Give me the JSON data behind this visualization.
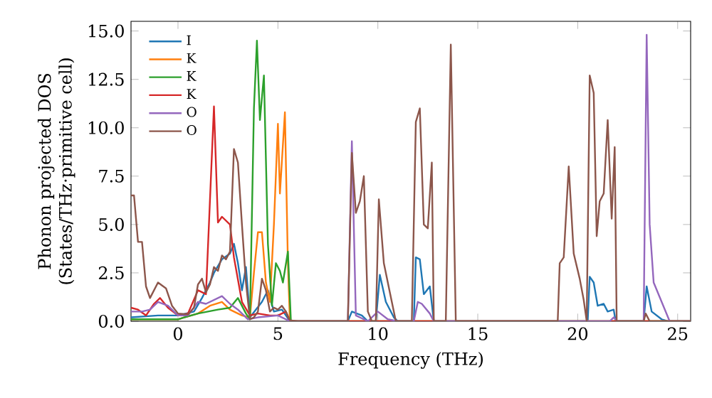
{
  "chart_data": {
    "type": "line",
    "xlabel": "Frequency (THz)",
    "ylabel": "Phonon projected DOS\n(States/THz·primitive cell)",
    "xlim": [
      -2.35,
      25.65
    ],
    "ylim": [
      0,
      15.5
    ],
    "xticks": [
      0,
      5,
      10,
      15,
      20,
      25
    ],
    "yticks": [
      {
        "value": 0,
        "label": "0.0"
      },
      {
        "value": 2.5,
        "label": "2.5"
      },
      {
        "value": 5,
        "label": "5.0"
      },
      {
        "value": 7.5,
        "label": "7.5"
      },
      {
        "value": 10,
        "label": "10.0"
      },
      {
        "value": 12.5,
        "label": "12.5"
      },
      {
        "value": 15,
        "label": "15.0"
      }
    ],
    "legend": "top left",
    "grid": false,
    "marker": "none",
    "line_style": "solid",
    "series": [
      {
        "name": "I",
        "color": "#1f77b4",
        "x": [
          -2.35,
          -1,
          0,
          0.8,
          1.2,
          1.6,
          1.8,
          2.2,
          2.6,
          2.8,
          3.0,
          3.2,
          3.4,
          3.6,
          4.2,
          4.5,
          4.8,
          5.2,
          5.6,
          8.5,
          8.7,
          9.2,
          9.5,
          9.9,
          10.1,
          10.4,
          10.8,
          11,
          11.8,
          11.9,
          12.1,
          12.3,
          12.6,
          12.8,
          20.5,
          20.6,
          20.8,
          21.0,
          21.3,
          21.5,
          21.8,
          21.9,
          23.3,
          23.45,
          23.7,
          24.2,
          24.5,
          25.65
        ],
        "values": [
          0.2,
          0.3,
          0.3,
          0.5,
          1.2,
          2.0,
          2.5,
          3.2,
          3.5,
          4.0,
          3.0,
          1.6,
          2.8,
          0.2,
          1.0,
          1.6,
          0.5,
          0.6,
          0,
          0,
          0.5,
          0.3,
          0,
          0,
          2.4,
          1.0,
          0.2,
          0,
          0,
          3.3,
          3.2,
          1.4,
          1.8,
          0,
          0,
          2.3,
          2.0,
          0.8,
          0.9,
          0.5,
          0.6,
          0,
          0,
          1.8,
          0.5,
          0.1,
          0,
          0
        ]
      },
      {
        "name": "K",
        "color": "#ff7f0e",
        "x": [
          -2.35,
          0,
          1.0,
          1.6,
          2.2,
          2.6,
          3.2,
          3.6,
          3.8,
          4.0,
          4.2,
          4.4,
          4.6,
          4.8,
          5.0,
          5.1,
          5.35,
          5.5,
          5.6,
          25.65
        ],
        "values": [
          0.1,
          0.1,
          0.4,
          0.8,
          1.0,
          0.6,
          0.3,
          0.2,
          2.5,
          4.6,
          4.6,
          2.0,
          1.0,
          5.0,
          10.2,
          6.6,
          10.8,
          3.0,
          0,
          0
        ]
      },
      {
        "name": "K",
        "color": "#2ca02c",
        "x": [
          -2.35,
          0,
          1.0,
          2.0,
          2.6,
          3.0,
          3.4,
          3.6,
          3.8,
          3.95,
          4.1,
          4.3,
          4.5,
          4.7,
          4.9,
          5.1,
          5.25,
          5.5,
          5.65,
          25.65
        ],
        "values": [
          0.1,
          0.1,
          0.4,
          0.6,
          0.7,
          1.2,
          0.4,
          0.1,
          11,
          14.5,
          10.4,
          12.7,
          4.0,
          0.8,
          3.0,
          2.6,
          2.0,
          3.6,
          0,
          0
        ]
      },
      {
        "name": "K",
        "color": "#d62728",
        "x": [
          -2.35,
          -2.0,
          -1.6,
          -1.2,
          -0.9,
          -0.5,
          0,
          0.5,
          1.0,
          1.4,
          1.8,
          2.0,
          2.2,
          2.6,
          2.8,
          3.2,
          3.6,
          4,
          4.6,
          5.0,
          5.4,
          5.6,
          25.65
        ],
        "values": [
          0.7,
          0.6,
          0.3,
          0.9,
          1.2,
          0.7,
          0.3,
          0.4,
          1.6,
          1.4,
          11.1,
          5.1,
          5.4,
          5.0,
          3.3,
          1.0,
          0.3,
          0.4,
          0.3,
          0.3,
          0.5,
          0,
          0
        ]
      },
      {
        "name": "O",
        "color": "#9467bd",
        "x": [
          -2.35,
          -1.8,
          -1.4,
          -1,
          -0.5,
          0,
          0.5,
          1.0,
          1.4,
          1.8,
          2.2,
          2.6,
          3.0,
          3.5,
          4,
          5,
          5.6,
          8.5,
          8.7,
          8.9,
          9.5,
          10.0,
          10.5,
          11,
          11.8,
          12.0,
          12.2,
          12.6,
          12.8,
          21.6,
          21.8,
          22,
          23.3,
          23.45,
          23.6,
          23.8,
          24.2,
          24.6,
          25.65
        ],
        "values": [
          0.5,
          0.5,
          0.6,
          1.0,
          0.8,
          0.3,
          0.3,
          1.0,
          0.9,
          1.1,
          1.3,
          0.9,
          0.6,
          0.1,
          0.2,
          0.3,
          0,
          0,
          9.3,
          0.3,
          0,
          0.5,
          0.1,
          0,
          0,
          1.0,
          0.9,
          0.4,
          0,
          0,
          0.2,
          0,
          0,
          14.8,
          5,
          2,
          1.0,
          0,
          0
        ]
      },
      {
        "name": "O",
        "color": "#8c564b",
        "x": [
          -2.35,
          -2.2,
          -2.0,
          -1.8,
          -1.6,
          -1.4,
          -1.2,
          -1.0,
          -0.6,
          -0.3,
          0,
          0.5,
          0.8,
          1.0,
          1.2,
          1.4,
          1.6,
          1.8,
          2.0,
          2.2,
          2.4,
          2.6,
          2.8,
          3.0,
          3.2,
          3.4,
          3.6,
          3.8,
          4.0,
          4.2,
          4.4,
          4.6,
          4.8,
          5.0,
          5.2,
          5.4,
          5.6,
          6.0,
          8.5,
          8.7,
          8.9,
          9.1,
          9.3,
          9.5,
          9.7,
          9.9,
          10.05,
          10.3,
          10.6,
          10.9,
          11.7,
          11.9,
          12.1,
          12.3,
          12.5,
          12.7,
          12.8,
          13.4,
          13.65,
          13.9,
          19.0,
          19.1,
          19.3,
          19.55,
          19.8,
          20.1,
          20.3,
          20.45,
          20.6,
          20.8,
          20.95,
          21.1,
          21.3,
          21.5,
          21.7,
          21.85,
          21.95,
          23.3,
          23.4,
          23.6,
          25.65
        ],
        "values": [
          6.5,
          6.5,
          4.1,
          4.1,
          1.8,
          1.2,
          1.6,
          2.0,
          1.7,
          0.8,
          0.4,
          0.35,
          0.7,
          1.9,
          2.2,
          1.5,
          1.9,
          2.8,
          2.6,
          3.4,
          3.2,
          3.6,
          8.9,
          8.2,
          5.0,
          2.0,
          0.1,
          0.2,
          0.5,
          2.2,
          1.6,
          0.5,
          0.7,
          0.6,
          0.8,
          0.5,
          0.05,
          0,
          0,
          8.7,
          5.6,
          6.2,
          7.5,
          0.5,
          0,
          0,
          6.3,
          3.0,
          1.5,
          0,
          0,
          10.3,
          11.0,
          5.0,
          4.8,
          8.2,
          0,
          0,
          14.3,
          0,
          0,
          3.0,
          3.3,
          8.0,
          3.5,
          2.2,
          1.1,
          0,
          12.7,
          11.8,
          4.4,
          6.2,
          6.6,
          10.4,
          5.3,
          9.0,
          0,
          0,
          0.4,
          0,
          0
        ]
      }
    ]
  }
}
